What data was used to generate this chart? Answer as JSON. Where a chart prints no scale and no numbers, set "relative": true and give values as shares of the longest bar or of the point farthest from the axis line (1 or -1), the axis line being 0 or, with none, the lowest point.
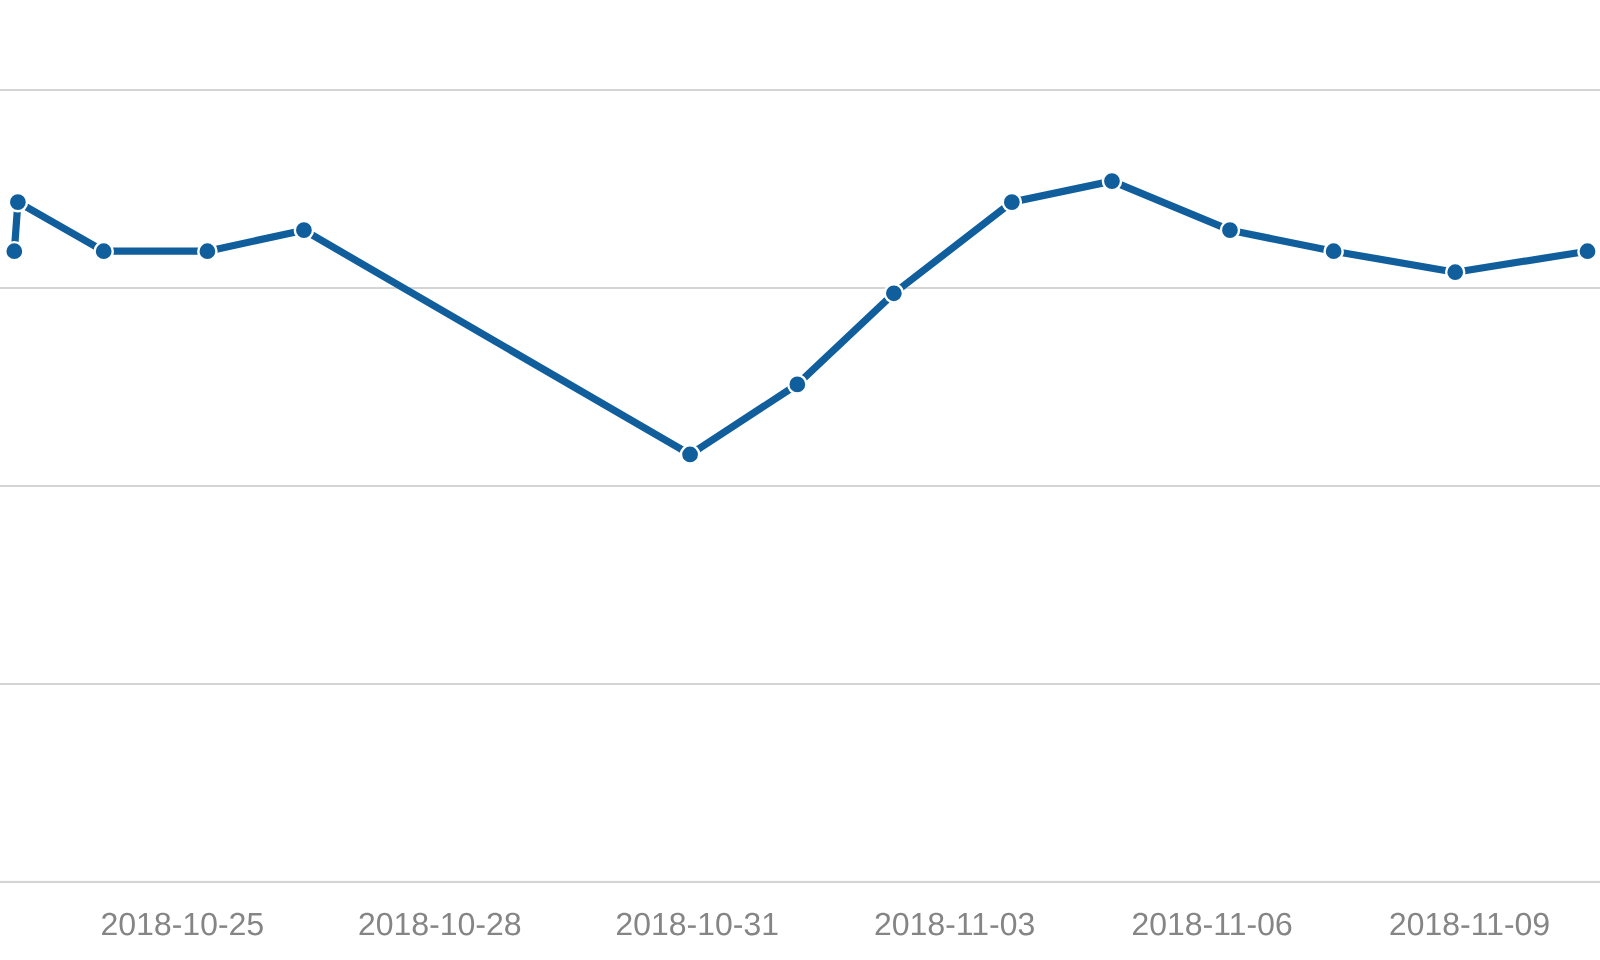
{
  "chart_data": {
    "type": "line",
    "relative": true,
    "x": [
      "2018-10-23T01:00",
      "2018-10-23T02:00",
      "2018-10-24T02:00",
      "2018-10-25T07:00",
      "2018-10-26T10:00",
      "2018-10-30T22:00",
      "2018-11-01T04:00",
      "2018-11-02T07:00",
      "2018-11-03T16:00",
      "2018-11-04T20:00",
      "2018-11-06T05:00",
      "2018-11-07T10:00",
      "2018-11-08T20:00",
      "2018-11-10T09:00"
    ],
    "series": [
      {
        "color": "#115e9c",
        "values": [
          0.9,
          0.97,
          0.9,
          0.9,
          0.93,
          0.61,
          0.71,
          0.84,
          0.97,
          1,
          0.93,
          0.9,
          0.87,
          0.9
        ]
      }
    ],
    "xlim": [
      "2018-10-22T21:00",
      "2018-11-10T12:30"
    ],
    "xticks": [
      "2018-10-25",
      "2018-10-28",
      "2018-10-31",
      "2018-11-03",
      "2018-11-06",
      "2018-11-09"
    ],
    "grid": "y",
    "marker": "circle",
    "line_style": "solid"
  }
}
